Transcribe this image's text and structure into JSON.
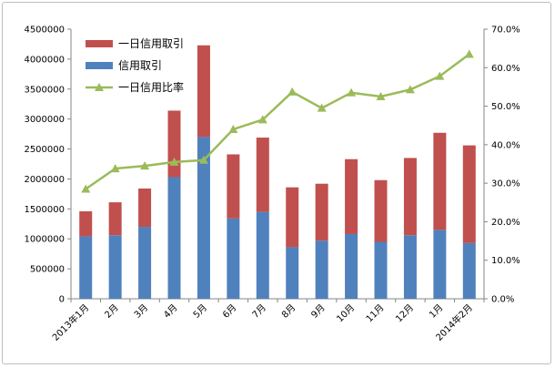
{
  "chart_data": {
    "type": "bar",
    "stacked": true,
    "categories": [
      "2013年1月",
      "2月",
      "3月",
      "4月",
      "5月",
      "6月",
      "7月",
      "8月",
      "9月",
      "10月",
      "11月",
      "12月",
      "1月",
      "2014年2月"
    ],
    "series": [
      {
        "name": "信用取引",
        "kind": "bar",
        "axis": "left",
        "color": "#4f81bd",
        "values": [
          1040000,
          1060000,
          1200000,
          2030000,
          2700000,
          1340000,
          1450000,
          860000,
          970000,
          1080000,
          950000,
          1060000,
          1150000,
          930000
        ]
      },
      {
        "name": "一日信用取引",
        "kind": "bar",
        "axis": "left",
        "color": "#c0504d",
        "values": [
          420000,
          550000,
          640000,
          1110000,
          1530000,
          1070000,
          1240000,
          1000000,
          950000,
          1250000,
          1030000,
          1290000,
          1620000,
          1630000
        ]
      },
      {
        "name": "一日信用比率",
        "kind": "line",
        "axis": "right",
        "color": "#9bbb59",
        "values": [
          0.285,
          0.338,
          0.345,
          0.355,
          0.36,
          0.44,
          0.465,
          0.537,
          0.495,
          0.535,
          0.525,
          0.543,
          0.578,
          0.635
        ]
      }
    ],
    "y_left": {
      "min": 0,
      "max": 4500000,
      "step": 500000,
      "ticks": [
        "0",
        "500000",
        "1000000",
        "1500000",
        "2000000",
        "2500000",
        "3000000",
        "3500000",
        "4000000",
        "4500000"
      ]
    },
    "y_right": {
      "min": 0,
      "max": 0.7,
      "step": 0.1,
      "ticks": [
        "0.0%",
        "10.0%",
        "20.0%",
        "30.0%",
        "40.0%",
        "50.0%",
        "60.0%",
        "70.0%"
      ]
    },
    "legend": {
      "position": "top-left",
      "items": [
        {
          "label": "一日信用取引",
          "type": "bar",
          "color": "#c0504d"
        },
        {
          "label": "信用取引",
          "type": "bar",
          "color": "#4f81bd"
        },
        {
          "label": "一日信用比率",
          "type": "line",
          "color": "#9bbb59"
        }
      ]
    },
    "grid": false
  }
}
